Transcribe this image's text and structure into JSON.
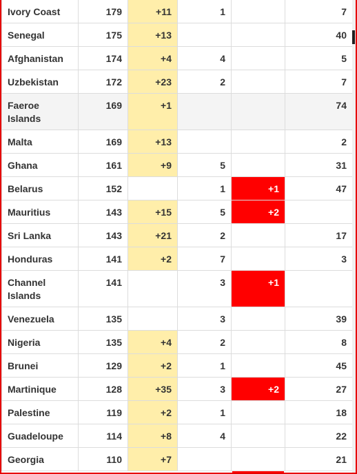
{
  "colors": {
    "new_cases_highlight": "#ffeeaa",
    "new_deaths_highlight": "#ff0000",
    "frame_border": "#e60000",
    "shaded_row": "#f4f4f4"
  },
  "rows": [
    {
      "country": "Ivory Coast",
      "total_cases": "179",
      "new_cases": "+11",
      "total_deaths": "1",
      "new_deaths": "",
      "total_recovered": "7"
    },
    {
      "country": "Senegal",
      "total_cases": "175",
      "new_cases": "+13",
      "total_deaths": "",
      "new_deaths": "",
      "total_recovered": "40"
    },
    {
      "country": "Afghanistan",
      "total_cases": "174",
      "new_cases": "+4",
      "total_deaths": "4",
      "new_deaths": "",
      "total_recovered": "5"
    },
    {
      "country": "Uzbekistan",
      "total_cases": "172",
      "new_cases": "+23",
      "total_deaths": "2",
      "new_deaths": "",
      "total_recovered": "7"
    },
    {
      "country": "Faeroe Islands",
      "total_cases": "169",
      "new_cases": "+1",
      "total_deaths": "",
      "new_deaths": "",
      "total_recovered": "74"
    },
    {
      "country": "Malta",
      "total_cases": "169",
      "new_cases": "+13",
      "total_deaths": "",
      "new_deaths": "",
      "total_recovered": "2"
    },
    {
      "country": "Ghana",
      "total_cases": "161",
      "new_cases": "+9",
      "total_deaths": "5",
      "new_deaths": "",
      "total_recovered": "31"
    },
    {
      "country": "Belarus",
      "total_cases": "152",
      "new_cases": "",
      "total_deaths": "1",
      "new_deaths": "+1",
      "total_recovered": "47"
    },
    {
      "country": "Mauritius",
      "total_cases": "143",
      "new_cases": "+15",
      "total_deaths": "5",
      "new_deaths": "+2",
      "total_recovered": ""
    },
    {
      "country": "Sri Lanka",
      "total_cases": "143",
      "new_cases": "+21",
      "total_deaths": "2",
      "new_deaths": "",
      "total_recovered": "17"
    },
    {
      "country": "Honduras",
      "total_cases": "141",
      "new_cases": "+2",
      "total_deaths": "7",
      "new_deaths": "",
      "total_recovered": "3"
    },
    {
      "country": "Channel Islands",
      "total_cases": "141",
      "new_cases": "",
      "total_deaths": "3",
      "new_deaths": "+1",
      "total_recovered": ""
    },
    {
      "country": "Venezuela",
      "total_cases": "135",
      "new_cases": "",
      "total_deaths": "3",
      "new_deaths": "",
      "total_recovered": "39"
    },
    {
      "country": "Nigeria",
      "total_cases": "135",
      "new_cases": "+4",
      "total_deaths": "2",
      "new_deaths": "",
      "total_recovered": "8"
    },
    {
      "country": "Brunei",
      "total_cases": "129",
      "new_cases": "+2",
      "total_deaths": "1",
      "new_deaths": "",
      "total_recovered": "45"
    },
    {
      "country": "Martinique",
      "total_cases": "128",
      "new_cases": "+35",
      "total_deaths": "3",
      "new_deaths": "+2",
      "total_recovered": "27"
    },
    {
      "country": "Palestine",
      "total_cases": "119",
      "new_cases": "+2",
      "total_deaths": "1",
      "new_deaths": "",
      "total_recovered": "18"
    },
    {
      "country": "Guadeloupe",
      "total_cases": "114",
      "new_cases": "+8",
      "total_deaths": "4",
      "new_deaths": "",
      "total_recovered": "22"
    },
    {
      "country": "Georgia",
      "total_cases": "110",
      "new_cases": "+7",
      "total_deaths": "",
      "new_deaths": "",
      "total_recovered": "21"
    }
  ]
}
